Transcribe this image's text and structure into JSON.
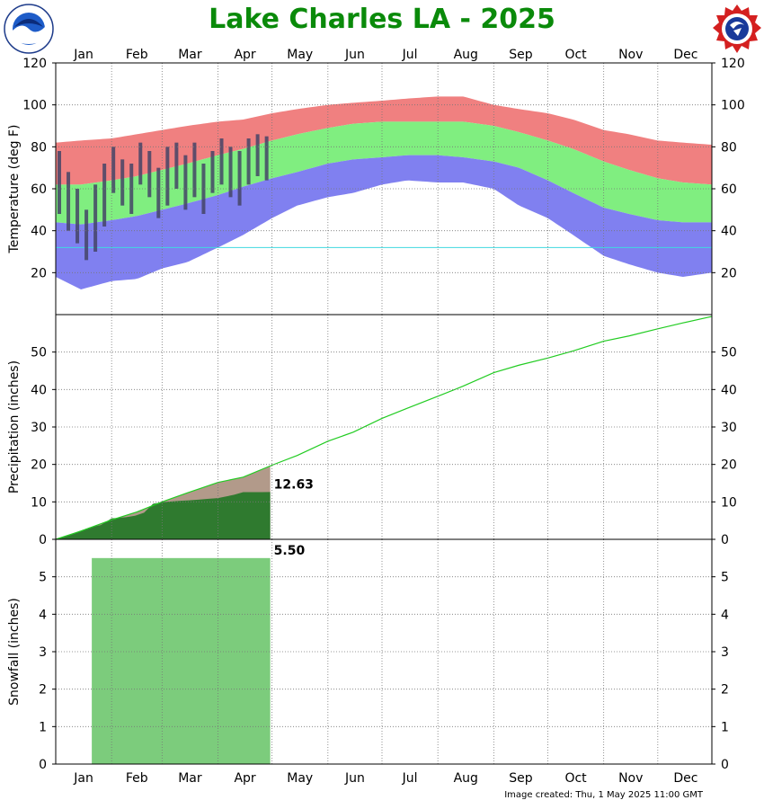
{
  "title": "Lake Charles LA - 2025",
  "footer": "Image created: Thu, 1 May 2025 11:00 GMT",
  "logos": {
    "left": "noaa-logo",
    "right": "nws-logo"
  },
  "colors": {
    "title": "#0a8a0a",
    "record_band": "#f08080",
    "normal_band": "#80ee80",
    "record_low_band": "#8080f0",
    "actual_temp": "#444466",
    "precip_normal_line": "#22cc22",
    "precip_actual": "#2f7a2f",
    "precip_actual_above": "#b29a8a",
    "snow_bar": "#7ccc7c",
    "freezing_line": "#40d8e0"
  },
  "chart_data": [
    {
      "type": "area",
      "panel": "temperature",
      "ylabel": "Temperature (deg F)",
      "ylim": [
        0,
        120
      ],
      "yticks": [
        20,
        40,
        60,
        80,
        100,
        120
      ],
      "months": [
        "Jan",
        "Feb",
        "Mar",
        "Apr",
        "May",
        "Jun",
        "Jul",
        "Aug",
        "Sep",
        "Oct",
        "Nov",
        "Dec"
      ],
      "grid": true,
      "freezing_line": 32,
      "series": [
        {
          "key": "record_high",
          "x": [
            1,
            15,
            32,
            46,
            60,
            74,
            91,
            105,
            121,
            135,
            152,
            166,
            182,
            196,
            213,
            227,
            244,
            258,
            274,
            288,
            305,
            319,
            335,
            349,
            365
          ],
          "values": [
            82,
            83,
            84,
            86,
            88,
            90,
            92,
            93,
            96,
            98,
            100,
            101,
            102,
            103,
            104,
            104,
            100,
            98,
            96,
            93,
            88,
            86,
            83,
            82,
            81
          ]
        },
        {
          "key": "normal_high",
          "x": [
            1,
            15,
            32,
            46,
            60,
            74,
            91,
            105,
            121,
            135,
            152,
            166,
            182,
            196,
            213,
            227,
            244,
            258,
            274,
            288,
            305,
            319,
            335,
            349,
            365
          ],
          "values": [
            62,
            62,
            64,
            66,
            69,
            72,
            76,
            79,
            83,
            86,
            89,
            91,
            92,
            92,
            92,
            92,
            90,
            87,
            83,
            79,
            73,
            69,
            65,
            63,
            62
          ]
        },
        {
          "key": "normal_low",
          "x": [
            1,
            15,
            32,
            46,
            60,
            74,
            91,
            105,
            121,
            135,
            152,
            166,
            182,
            196,
            213,
            227,
            244,
            258,
            274,
            288,
            305,
            319,
            335,
            349,
            365
          ],
          "values": [
            44,
            43,
            45,
            47,
            50,
            53,
            57,
            61,
            65,
            68,
            72,
            74,
            75,
            76,
            76,
            75,
            73,
            70,
            64,
            58,
            51,
            48,
            45,
            44,
            44
          ]
        },
        {
          "key": "record_low",
          "x": [
            1,
            15,
            32,
            46,
            60,
            74,
            91,
            105,
            121,
            135,
            152,
            166,
            182,
            196,
            213,
            227,
            244,
            258,
            274,
            288,
            305,
            319,
            335,
            349,
            365
          ],
          "values": [
            18,
            12,
            16,
            17,
            22,
            25,
            32,
            38,
            46,
            52,
            56,
            58,
            62,
            64,
            63,
            63,
            60,
            52,
            46,
            38,
            28,
            24,
            20,
            18,
            20
          ]
        },
        {
          "key": "actual_high",
          "x": [
            3,
            8,
            13,
            18,
            23,
            28,
            33,
            38,
            43,
            48,
            53,
            58,
            63,
            68,
            73,
            78,
            83,
            88,
            93,
            98,
            103,
            108,
            113,
            118
          ],
          "values": [
            78,
            68,
            60,
            50,
            62,
            72,
            80,
            74,
            72,
            82,
            78,
            70,
            80,
            82,
            76,
            82,
            72,
            78,
            84,
            80,
            78,
            84,
            86,
            85
          ]
        },
        {
          "key": "actual_low",
          "x": [
            3,
            8,
            13,
            18,
            23,
            28,
            33,
            38,
            43,
            48,
            53,
            58,
            63,
            68,
            73,
            78,
            83,
            88,
            93,
            98,
            103,
            108,
            113,
            118
          ],
          "values": [
            48,
            40,
            34,
            26,
            30,
            42,
            58,
            52,
            48,
            62,
            56,
            46,
            52,
            60,
            50,
            56,
            48,
            58,
            62,
            56,
            52,
            62,
            66,
            64
          ]
        }
      ]
    },
    {
      "type": "line",
      "panel": "precipitation",
      "ylabel": "Precipitation (inches)",
      "ylim": [
        0,
        60
      ],
      "yticks": [
        0,
        10,
        20,
        30,
        40,
        50
      ],
      "series": [
        {
          "key": "normal_cumulative",
          "x": [
            1,
            15,
            32,
            46,
            60,
            74,
            91,
            105,
            121,
            135,
            152,
            166,
            182,
            196,
            213,
            227,
            244,
            258,
            274,
            288,
            305,
            319,
            335,
            349,
            365
          ],
          "values": [
            0,
            2.2,
            5.2,
            7.3,
            10,
            12.4,
            15.2,
            16.6,
            19.8,
            22.4,
            26.2,
            28.6,
            32.3,
            35,
            38.2,
            40.9,
            44.5,
            46.5,
            48.4,
            50.3,
            52.9,
            54.3,
            56.2,
            57.8,
            59.5
          ]
        },
        {
          "key": "actual_cumulative",
          "x": [
            1,
            10,
            20,
            26,
            32,
            40,
            45,
            50,
            55,
            60,
            65,
            70,
            75,
            80,
            85,
            91,
            95,
            100,
            105,
            110,
            115,
            120
          ],
          "values": [
            0,
            1.5,
            3.2,
            3.8,
            5.6,
            5.9,
            6.3,
            7.1,
            9.5,
            9.9,
            10.1,
            10.3,
            10.4,
            10.6,
            10.8,
            11.0,
            11.4,
            11.9,
            12.6,
            12.6,
            12.6,
            12.63
          ]
        }
      ],
      "annotation": "12.63"
    },
    {
      "type": "bar",
      "panel": "snowfall",
      "ylabel": "Snowfall (inches)",
      "ylim": [
        0,
        6
      ],
      "yticks": [
        0,
        1,
        2,
        3,
        4,
        5
      ],
      "series": [
        {
          "key": "cumulative_snow",
          "x": [
            21,
            120
          ],
          "values": [
            5.5,
            5.5
          ]
        }
      ],
      "annotation": "5.50"
    }
  ]
}
